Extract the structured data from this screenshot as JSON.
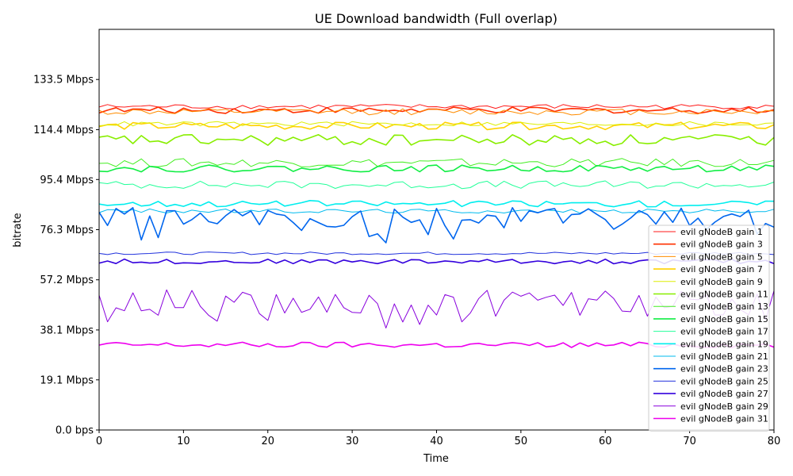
{
  "chart_data": {
    "type": "line",
    "title": "UE Download bandwidth (Full overlap)",
    "xlabel": "Time",
    "ylabel": "bitrate",
    "xlim": [
      0,
      80
    ],
    "ylim": [
      0,
      152.6
    ],
    "xticks": [
      0,
      10,
      20,
      30,
      40,
      50,
      60,
      70,
      80
    ],
    "yticks": [
      {
        "value": 0,
        "label": "0.0 bps"
      },
      {
        "value": 19.1,
        "label": "19.1 Mbps"
      },
      {
        "value": 38.1,
        "label": "38.1 Mbps"
      },
      {
        "value": 57.2,
        "label": "57.2 Mbps"
      },
      {
        "value": 76.3,
        "label": "76.3 Mbps"
      },
      {
        "value": 95.4,
        "label": "95.4 Mbps"
      },
      {
        "value": 114.4,
        "label": "114.4 Mbps"
      },
      {
        "value": 133.5,
        "label": "133.5 Mbps"
      }
    ],
    "grid": false,
    "legend_position": "lower-right",
    "series": [
      {
        "name": "evil gNodeB gain 1",
        "color": "#ff1a1a",
        "base": 123.2,
        "amp": 0.9,
        "seed": 1,
        "width": 1
      },
      {
        "name": "evil gNodeB gain 3",
        "color": "#ff3000",
        "base": 121.8,
        "amp": 1.2,
        "seed": 3,
        "width": 1.6
      },
      {
        "name": "evil gNodeB gain 5",
        "color": "#ff8c00",
        "base": 121.2,
        "amp": 1.2,
        "seed": 5,
        "width": 1
      },
      {
        "name": "evil gNodeB gain 7",
        "color": "#ffd200",
        "base": 115.8,
        "amp": 1.4,
        "seed": 7,
        "width": 1.6
      },
      {
        "name": "evil gNodeB gain 9",
        "color": "#ddee00",
        "base": 116.6,
        "amp": 0.9,
        "seed": 9,
        "width": 1
      },
      {
        "name": "evil gNodeB gain 11",
        "color": "#88ee00",
        "base": 110.4,
        "amp": 2.2,
        "seed": 11,
        "width": 1.6
      },
      {
        "name": "evil gNodeB gain 13",
        "color": "#44ee22",
        "base": 101.8,
        "amp": 1.6,
        "seed": 13,
        "width": 1
      },
      {
        "name": "evil gNodeB gain 15",
        "color": "#11ee44",
        "base": 99.6,
        "amp": 1.3,
        "seed": 15,
        "width": 1.6
      },
      {
        "name": "evil gNodeB gain 17",
        "color": "#22ff99",
        "base": 93.4,
        "amp": 1.5,
        "seed": 17,
        "width": 1
      },
      {
        "name": "evil gNodeB gain 19",
        "color": "#00eeee",
        "base": 86.2,
        "amp": 1.2,
        "seed": 19,
        "width": 1.6
      },
      {
        "name": "evil gNodeB gain 21",
        "color": "#00bbee",
        "base": 83.4,
        "amp": 0.8,
        "seed": 21,
        "width": 1
      },
      {
        "name": "evil gNodeB gain 23",
        "color": "#0066ee",
        "base": 80.5,
        "amp": 4.2,
        "seed": 23,
        "width": 1.6
      },
      {
        "name": "evil gNodeB gain 25",
        "color": "#2233dd",
        "base": 67.3,
        "amp": 0.5,
        "seed": 25,
        "width": 1
      },
      {
        "name": "evil gNodeB gain 27",
        "color": "#3300dd",
        "base": 64.2,
        "amp": 0.9,
        "seed": 27,
        "width": 1.6
      },
      {
        "name": "evil gNodeB gain 29",
        "color": "#8800dd",
        "base": 48.2,
        "amp": 5.2,
        "seed": 29,
        "width": 1
      },
      {
        "name": "evil gNodeB gain 31",
        "color": "#ee00ee",
        "base": 32.4,
        "amp": 1.1,
        "seed": 31,
        "width": 1.6
      }
    ]
  }
}
